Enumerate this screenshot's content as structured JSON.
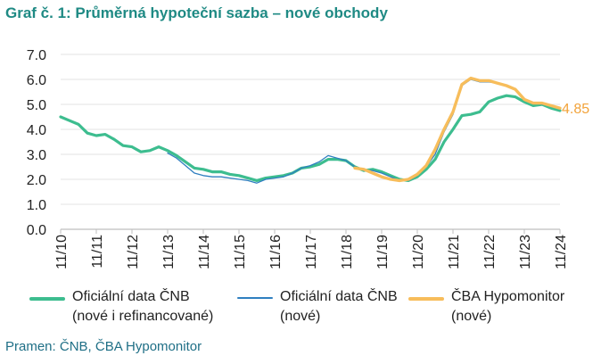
{
  "title": "Graf č. 1: Průměrná hypoteční sazba – nové obchody",
  "source": "Pramen: ČNB, ČBA Hypomonitor",
  "colors": {
    "cnb_total": "#3dbd8f",
    "cnb_new": "#2f7fc0",
    "cba": "#f7bd5b",
    "annotation": "#f2a33a",
    "axis": "#bfbfbf",
    "grid": "#e3e3e3"
  },
  "legend": [
    {
      "line1": "Oficiální data ČNB",
      "line2": "(nové i refinancované)"
    },
    {
      "line1": "Oficiální data ČNB",
      "line2": "(nové)"
    },
    {
      "line1": "ČBA Hypomonitor",
      "line2": "(nové)"
    }
  ],
  "chart_data": {
    "type": "line",
    "title": "Graf č. 1: Průměrná hypoteční sazba – nové obchody",
    "xlabel": "",
    "ylabel": "",
    "ylim": [
      0,
      7
    ],
    "yticks": [
      "0.0",
      "1.0",
      "2.0",
      "3.0",
      "4.0",
      "5.0",
      "6.0",
      "7.0"
    ],
    "xlim": [
      "11/10",
      "11/24"
    ],
    "xticks": [
      "11/10",
      "11/11",
      "11/12",
      "11/13",
      "11/14",
      "11/15",
      "11/16",
      "11/17",
      "11/18",
      "11/19",
      "11/20",
      "11/21",
      "11/22",
      "11/23",
      "11/24"
    ],
    "grid": "horizontal",
    "legend_position": "bottom",
    "annotation": {
      "label": "4.85",
      "series": "ČBA Hypomonitor (nové)",
      "x": "11/24",
      "y": 4.85
    },
    "series": [
      {
        "name": "Oficiální data ČNB (nové i refinancované)",
        "points": [
          [
            "11/10",
            4.5
          ],
          [
            "2/11",
            4.35
          ],
          [
            "5/11",
            4.2
          ],
          [
            "8/11",
            3.85
          ],
          [
            "11/11",
            3.75
          ],
          [
            "2/12",
            3.8
          ],
          [
            "5/12",
            3.6
          ],
          [
            "8/12",
            3.35
          ],
          [
            "11/12",
            3.3
          ],
          [
            "2/13",
            3.1
          ],
          [
            "5/13",
            3.15
          ],
          [
            "8/13",
            3.3
          ],
          [
            "11/13",
            3.15
          ],
          [
            "2/14",
            2.95
          ],
          [
            "5/14",
            2.7
          ],
          [
            "8/14",
            2.45
          ],
          [
            "11/14",
            2.4
          ],
          [
            "2/15",
            2.3
          ],
          [
            "5/15",
            2.3
          ],
          [
            "8/15",
            2.2
          ],
          [
            "11/15",
            2.15
          ],
          [
            "2/16",
            2.05
          ],
          [
            "5/16",
            1.95
          ],
          [
            "8/16",
            2.05
          ],
          [
            "11/16",
            2.1
          ],
          [
            "2/17",
            2.15
          ],
          [
            "5/17",
            2.25
          ],
          [
            "8/17",
            2.45
          ],
          [
            "11/17",
            2.5
          ],
          [
            "2/18",
            2.6
          ],
          [
            "5/18",
            2.8
          ],
          [
            "8/18",
            2.8
          ],
          [
            "11/18",
            2.75
          ],
          [
            "2/19",
            2.5
          ],
          [
            "5/19",
            2.35
          ],
          [
            "8/19",
            2.4
          ],
          [
            "11/19",
            2.3
          ],
          [
            "2/20",
            2.15
          ],
          [
            "5/20",
            2.0
          ],
          [
            "8/20",
            1.95
          ],
          [
            "11/20",
            2.1
          ],
          [
            "2/21",
            2.4
          ],
          [
            "5/21",
            2.8
          ],
          [
            "8/21",
            3.5
          ],
          [
            "11/21",
            4.0
          ],
          [
            "2/22",
            4.55
          ],
          [
            "5/22",
            4.6
          ],
          [
            "8/22",
            4.7
          ],
          [
            "11/22",
            5.1
          ],
          [
            "2/23",
            5.25
          ],
          [
            "5/23",
            5.35
          ],
          [
            "8/23",
            5.3
          ],
          [
            "11/23",
            5.1
          ],
          [
            "2/24",
            4.95
          ],
          [
            "5/24",
            5.0
          ],
          [
            "8/24",
            4.85
          ],
          [
            "11/24",
            4.75
          ]
        ]
      },
      {
        "name": "Oficiální data ČNB (nové)",
        "points": [
          [
            "11/13",
            3.05
          ],
          [
            "2/14",
            2.85
          ],
          [
            "5/14",
            2.55
          ],
          [
            "8/14",
            2.25
          ],
          [
            "11/14",
            2.15
          ],
          [
            "2/15",
            2.1
          ],
          [
            "5/15",
            2.1
          ],
          [
            "8/15",
            2.05
          ],
          [
            "11/15",
            2.0
          ],
          [
            "2/16",
            1.95
          ],
          [
            "5/16",
            1.85
          ],
          [
            "8/16",
            2.0
          ],
          [
            "11/16",
            2.05
          ],
          [
            "2/17",
            2.1
          ],
          [
            "5/17",
            2.25
          ],
          [
            "8/17",
            2.45
          ],
          [
            "11/17",
            2.55
          ],
          [
            "2/18",
            2.7
          ],
          [
            "5/18",
            2.95
          ],
          [
            "8/18",
            2.85
          ],
          [
            "11/18",
            2.75
          ],
          [
            "2/19",
            2.5
          ],
          [
            "5/19",
            2.35
          ],
          [
            "8/19",
            2.35
          ],
          [
            "11/19",
            2.25
          ],
          [
            "2/20",
            2.1
          ],
          [
            "5/20",
            1.95
          ],
          [
            "8/20",
            1.95
          ],
          [
            "11/20",
            2.15
          ],
          [
            "2/21",
            2.5
          ],
          [
            "5/21",
            3.0
          ],
          [
            "8/21",
            3.9
          ],
          [
            "11/21",
            4.6
          ],
          [
            "2/22",
            5.75
          ],
          [
            "5/22",
            6.0
          ],
          [
            "8/22",
            5.9
          ],
          [
            "11/22",
            5.9
          ],
          [
            "2/23",
            5.85
          ],
          [
            "5/23",
            5.75
          ],
          [
            "8/23",
            5.6
          ],
          [
            "11/23",
            5.2
          ],
          [
            "2/24",
            5.05
          ],
          [
            "5/24",
            5.0
          ],
          [
            "8/24",
            4.95
          ],
          [
            "11/24",
            4.85
          ]
        ]
      },
      {
        "name": "ČBA Hypomonitor (nové)",
        "points": [
          [
            "2/19",
            2.45
          ],
          [
            "5/19",
            2.4
          ],
          [
            "8/19",
            2.25
          ],
          [
            "11/19",
            2.1
          ],
          [
            "2/20",
            2.0
          ],
          [
            "5/20",
            1.95
          ],
          [
            "8/20",
            2.0
          ],
          [
            "11/20",
            2.2
          ],
          [
            "2/21",
            2.55
          ],
          [
            "5/21",
            3.2
          ],
          [
            "8/21",
            4.0
          ],
          [
            "11/21",
            4.7
          ],
          [
            "2/22",
            5.8
          ],
          [
            "5/22",
            6.05
          ],
          [
            "8/22",
            5.95
          ],
          [
            "11/22",
            5.95
          ],
          [
            "2/23",
            5.85
          ],
          [
            "5/23",
            5.75
          ],
          [
            "8/23",
            5.6
          ],
          [
            "11/23",
            5.2
          ],
          [
            "2/24",
            5.05
          ],
          [
            "5/24",
            5.05
          ],
          [
            "8/24",
            4.95
          ],
          [
            "11/24",
            4.85
          ]
        ]
      }
    ]
  }
}
